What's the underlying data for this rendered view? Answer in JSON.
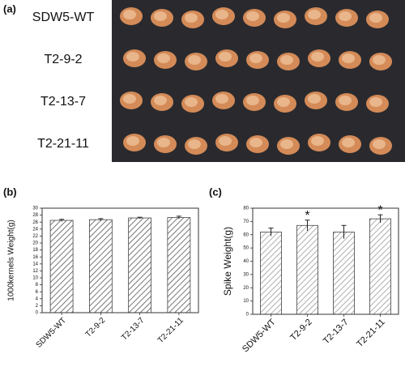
{
  "photo": {
    "panel_label": "(a)",
    "rows": [
      "SDW5-WT",
      "T2-9-2",
      "T2-13-7",
      "T2-21-11"
    ]
  },
  "chart_data": [
    {
      "type": "bar",
      "panel_label": "(b)",
      "y_label": "1000kernels Weight(g)",
      "categories": [
        "SDW5-WT",
        "T2-9-2",
        "T2-13-7",
        "T2-21-11"
      ],
      "values": [
        26.5,
        26.7,
        27.2,
        27.3
      ],
      "errors": [
        0.3,
        0.3,
        0.2,
        0.4
      ],
      "color": "#555555",
      "ylim": [
        0,
        30
      ],
      "yticks": [
        0,
        2,
        4,
        6,
        8,
        10,
        12,
        14,
        16,
        18,
        20,
        22,
        24,
        26,
        28,
        30
      ]
    },
    {
      "type": "bar",
      "panel_label": "(c)",
      "y_label": "Spike Weight(g)",
      "categories": [
        "SDW5-WT",
        "T2-9-2",
        "T2-13-7",
        "T2-21-11"
      ],
      "values": [
        62,
        67,
        62,
        72
      ],
      "errors": [
        3,
        4,
        5,
        3
      ],
      "color": "#999999",
      "ylim": [
        0,
        80
      ],
      "yticks": [
        0,
        10,
        20,
        30,
        40,
        50,
        60,
        70,
        80
      ],
      "annotations": [
        {
          "category": "T2-9-2",
          "text": "*"
        },
        {
          "category": "T2-21-11",
          "text": "*"
        }
      ]
    }
  ]
}
